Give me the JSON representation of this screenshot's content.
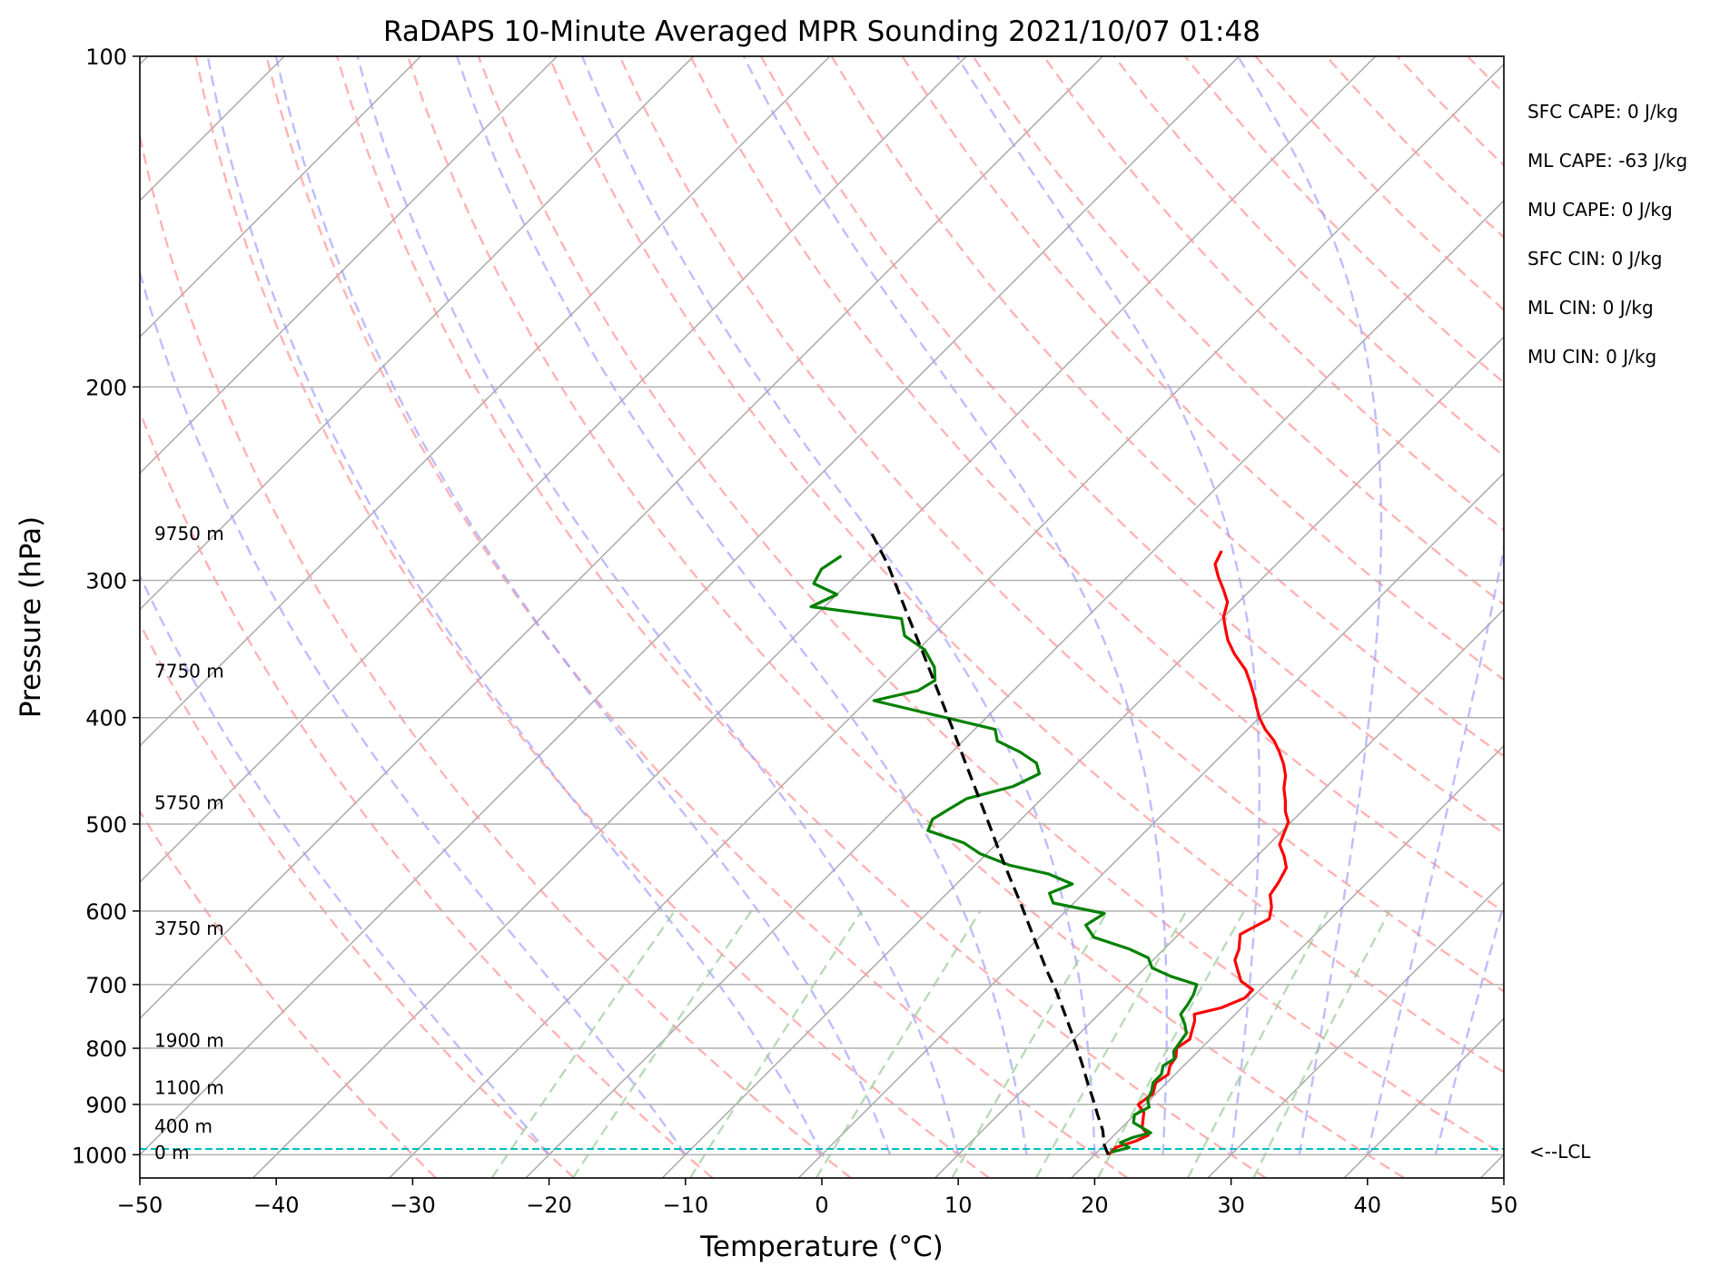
{
  "chart_data": {
    "type": "line",
    "title": "RaDAPS 10-Minute Averaged MPR Sounding 2021/10/07 01:48",
    "xlabel": "Temperature (°C)",
    "ylabel": "Pressure (hPa)",
    "xlim": [
      -50,
      50
    ],
    "ylim": [
      1050,
      100
    ],
    "y_scale": "log",
    "x_ticks": [
      "−50",
      "−40",
      "−30",
      "−20",
      "−10",
      "0",
      "10",
      "20",
      "30",
      "40",
      "50"
    ],
    "y_ticks": [
      "100",
      "200",
      "300",
      "400",
      "500",
      "600",
      "700",
      "800",
      "900",
      "1000"
    ],
    "grid": true,
    "series": [
      {
        "color": "#ff0000",
        "points": [
          [
            21.0,
            1000
          ],
          [
            21.0,
            985
          ],
          [
            22.0,
            972
          ],
          [
            22.5,
            960
          ],
          [
            21.5,
            945
          ],
          [
            21.0,
            930
          ],
          [
            20.5,
            915
          ],
          [
            19.5,
            900
          ],
          [
            19.8,
            880
          ],
          [
            19.2,
            860
          ],
          [
            19.5,
            845
          ],
          [
            19.0,
            830
          ],
          [
            18.8,
            815
          ],
          [
            18.2,
            800
          ],
          [
            18.5,
            785
          ],
          [
            18.0,
            770
          ],
          [
            17.5,
            755
          ],
          [
            17.0,
            745
          ],
          [
            18.5,
            735
          ],
          [
            19.5,
            720
          ],
          [
            19.5,
            708
          ],
          [
            18.0,
            695
          ],
          [
            17.0,
            680
          ],
          [
            16.0,
            665
          ],
          [
            15.5,
            650
          ],
          [
            14.5,
            630
          ],
          [
            15.5,
            610
          ],
          [
            14.8,
            595
          ],
          [
            13.8,
            580
          ],
          [
            13.5,
            565
          ],
          [
            13.0,
            548
          ],
          [
            12.0,
            535
          ],
          [
            10.8,
            522
          ],
          [
            10.3,
            510
          ],
          [
            9.8,
            498
          ],
          [
            8.8,
            487
          ],
          [
            8.0,
            476
          ],
          [
            7.0,
            464
          ],
          [
            6.2,
            452
          ],
          [
            5.2,
            441
          ],
          [
            4.0,
            430
          ],
          [
            2.8,
            420
          ],
          [
            1.3,
            410
          ],
          [
            0.0,
            400
          ],
          [
            -1.0,
            391
          ],
          [
            -2.0,
            382
          ],
          [
            -3.2,
            372
          ],
          [
            -4.5,
            362
          ],
          [
            -6.5,
            350
          ],
          [
            -8.0,
            340
          ],
          [
            -9.0,
            332
          ],
          [
            -10.0,
            324
          ],
          [
            -10.8,
            314
          ],
          [
            -12.0,
            306
          ],
          [
            -13.3,
            298
          ],
          [
            -14.5,
            290
          ],
          [
            -15.0,
            282
          ]
        ]
      },
      {
        "color": "#008000",
        "points": [
          [
            21.0,
            995
          ],
          [
            22.0,
            985
          ],
          [
            21.0,
            975
          ],
          [
            21.5,
            965
          ],
          [
            22.5,
            955
          ],
          [
            21.5,
            945
          ],
          [
            20.5,
            935
          ],
          [
            20.0,
            920
          ],
          [
            20.5,
            905
          ],
          [
            19.8,
            890
          ],
          [
            19.5,
            875
          ],
          [
            19.0,
            860
          ],
          [
            19.0,
            845
          ],
          [
            18.5,
            830
          ],
          [
            18.8,
            818
          ],
          [
            18.2,
            805
          ],
          [
            18.0,
            790
          ],
          [
            17.8,
            775
          ],
          [
            17.0,
            760
          ],
          [
            16.0,
            745
          ],
          [
            15.8,
            730
          ],
          [
            15.5,
            715
          ],
          [
            15.0,
            700
          ],
          [
            12.5,
            688
          ],
          [
            10.5,
            676
          ],
          [
            9.5,
            662
          ],
          [
            7.5,
            650
          ],
          [
            4.0,
            634
          ],
          [
            2.5,
            618
          ],
          [
            3.0,
            603
          ],
          [
            -1.5,
            590
          ],
          [
            -2.5,
            578
          ],
          [
            -1.5,
            567
          ],
          [
            -4.0,
            555
          ],
          [
            -7.5,
            545
          ],
          [
            -10.5,
            532
          ],
          [
            -12.5,
            520
          ],
          [
            -16.0,
            507
          ],
          [
            -16.5,
            495
          ],
          [
            -16.0,
            484
          ],
          [
            -15.5,
            474
          ],
          [
            -13.0,
            462
          ],
          [
            -12.0,
            450
          ],
          [
            -13.0,
            440
          ],
          [
            -15.0,
            430
          ],
          [
            -17.5,
            420
          ],
          [
            -18.5,
            410
          ],
          [
            -23.0,
            400
          ],
          [
            -29.5,
            386
          ],
          [
            -27.0,
            378
          ],
          [
            -26.5,
            370
          ],
          [
            -27.5,
            360
          ],
          [
            -29.5,
            347
          ],
          [
            -32.0,
            337
          ],
          [
            -33.5,
            325
          ],
          [
            -41.0,
            317
          ],
          [
            -40.0,
            309
          ],
          [
            -42.5,
            302
          ],
          [
            -43.0,
            293
          ],
          [
            -42.5,
            285
          ]
        ]
      },
      {
        "color": "#000000",
        "dashed": true,
        "points": [
          [
            21.0,
            1000
          ],
          [
            20.0,
            980
          ],
          [
            18.8,
            950
          ],
          [
            17.3,
            920
          ],
          [
            15.8,
            890
          ],
          [
            14.2,
            860
          ],
          [
            12.6,
            830
          ],
          [
            10.9,
            800
          ],
          [
            9.1,
            770
          ],
          [
            7.2,
            740
          ],
          [
            5.2,
            710
          ],
          [
            3.0,
            680
          ],
          [
            0.8,
            650
          ],
          [
            -1.5,
            620
          ],
          [
            -3.9,
            590
          ],
          [
            -6.5,
            560
          ],
          [
            -9.2,
            530
          ],
          [
            -12.0,
            500
          ],
          [
            -15.0,
            470
          ],
          [
            -18.2,
            440
          ],
          [
            -21.6,
            410
          ],
          [
            -25.3,
            380
          ],
          [
            -29.3,
            350
          ],
          [
            -33.7,
            320
          ],
          [
            -38.5,
            290
          ],
          [
            -42.3,
            270
          ]
        ]
      }
    ],
    "height_labels": [
      {
        "text": "9750 m",
        "p": 272
      },
      {
        "text": "7750 m",
        "p": 363
      },
      {
        "text": "5750 m",
        "p": 478
      },
      {
        "text": "3750 m",
        "p": 622
      },
      {
        "text": "1900 m",
        "p": 787
      },
      {
        "text": "1100 m",
        "p": 869
      },
      {
        "text": "400 m",
        "p": 942
      },
      {
        "text": "0 m",
        "p": 996
      }
    ],
    "lcl": {
      "p": 988,
      "label": "<--LCL",
      "color": "#00bfbf"
    },
    "indices": [
      "SFC CAPE: 0 J/kg",
      "ML CAPE: -63 J/kg",
      "MU CAPE: 0 J/kg",
      "SFC CIN: 0 J/kg",
      "ML CIN: 0 J/kg",
      "MU CIN: 0 J/kg"
    ],
    "background": {
      "skew": 35,
      "dry_adiabat_color": "#ff9999",
      "moist_adiabat_color": "#9999ff",
      "mixing_ratio_color": "#99cc99",
      "isotherm_color": "#aaaaaa"
    }
  }
}
